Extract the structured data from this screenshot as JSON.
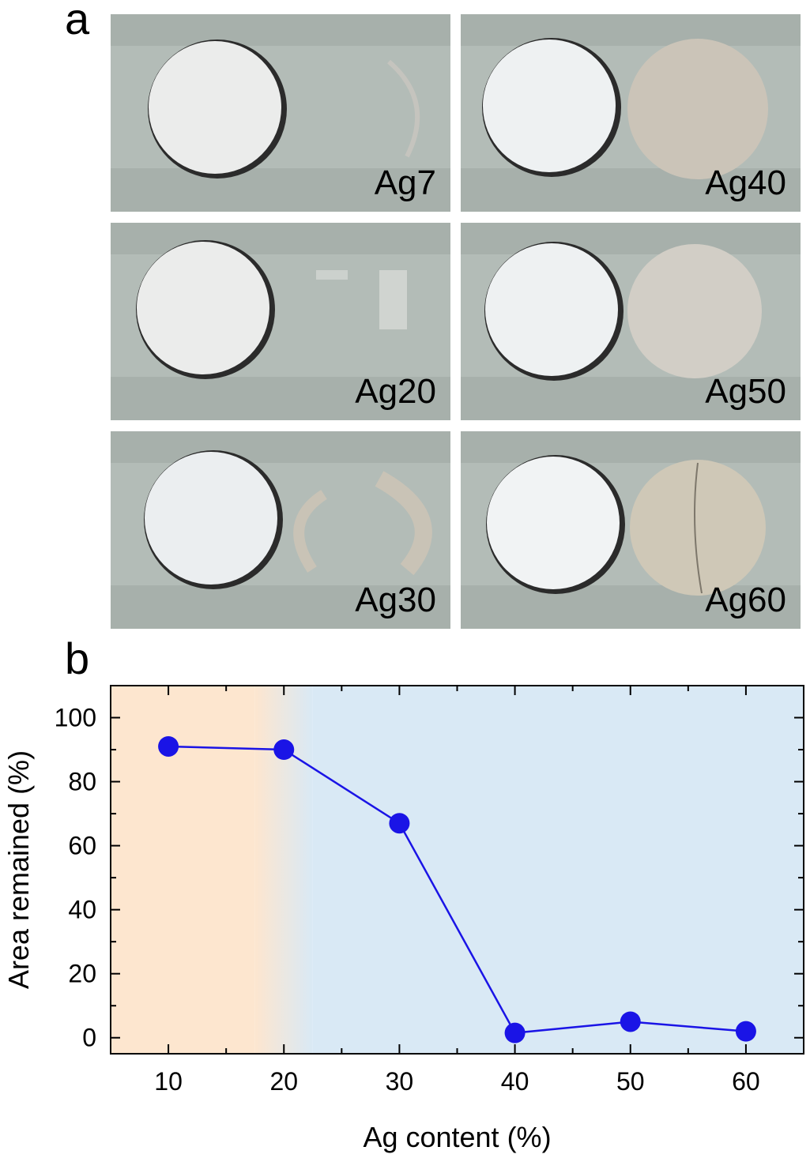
{
  "panel_a": {
    "letter": "a",
    "samples": [
      {
        "label": "Ag7",
        "film": "residue"
      },
      {
        "label": "Ag40",
        "film": "full"
      },
      {
        "label": "Ag20",
        "film": "partial"
      },
      {
        "label": "Ag50",
        "film": "full"
      },
      {
        "label": "Ag30",
        "film": "ring"
      },
      {
        "label": "Ag60",
        "film": "full"
      }
    ]
  },
  "panel_b": {
    "letter": "b"
  },
  "colors": {
    "series": "#1a14e6",
    "region_low": "#fde6cf",
    "region_high": "#d9e9f5",
    "photo_bg": "#a9b2ad",
    "tape": "#b4bdb8"
  },
  "chart_data": {
    "type": "line",
    "xlabel": "Ag content (%)",
    "ylabel": "Area remained (%)",
    "xlim": [
      5,
      65
    ],
    "ylim": [
      -5,
      110
    ],
    "xticks": [
      10,
      20,
      30,
      40,
      50,
      60
    ],
    "yticks": [
      0,
      20,
      40,
      60,
      80,
      100
    ],
    "grid": false,
    "background_regions": [
      {
        "from": 5,
        "to": 17.5,
        "color": "#fde6cf"
      },
      {
        "from": 17.5,
        "to": 22.5,
        "color": "gradient"
      },
      {
        "from": 22.5,
        "to": 65,
        "color": "#d9e9f5"
      }
    ],
    "series": [
      {
        "x": [
          10,
          20,
          30,
          40,
          50,
          60
        ],
        "values": [
          91,
          90,
          67,
          1.5,
          5,
          2
        ]
      }
    ]
  }
}
